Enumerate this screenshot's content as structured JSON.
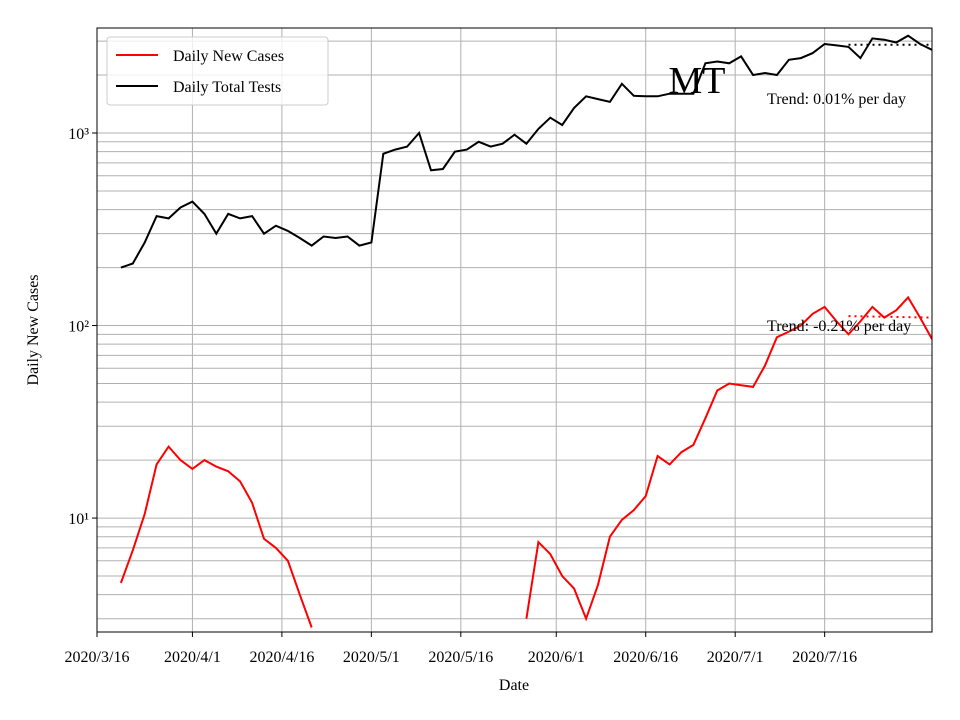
{
  "chart_data": {
    "type": "line",
    "title": "MT",
    "x_label": "Date",
    "y_label": "Daily New Cases",
    "log_scale": true,
    "grid": true,
    "legend": "upper left",
    "xlim": [
      "2020-03-16",
      "2020-08-03"
    ],
    "xticks": [
      {
        "value": "2020-03-16",
        "label": "2020/3/16"
      },
      {
        "value": "2020-04-01",
        "label": "2020/4/1"
      },
      {
        "value": "2020-04-16",
        "label": "2020/4/16"
      },
      {
        "value": "2020-05-01",
        "label": "2020/5/1"
      },
      {
        "value": "2020-05-16",
        "label": "2020/5/16"
      },
      {
        "value": "2020-06-01",
        "label": "2020/6/1"
      },
      {
        "value": "2020-06-16",
        "label": "2020/6/16"
      },
      {
        "value": "2020-07-01",
        "label": "2020/7/1"
      },
      {
        "value": "2020-07-16",
        "label": "2020/7/16"
      }
    ],
    "ylim": [
      2.56,
      3510
    ],
    "yticks": [
      {
        "value": 10,
        "label": "10¹"
      },
      {
        "value": 100,
        "label": "10²"
      },
      {
        "value": 1000,
        "label": "10³"
      }
    ],
    "yminorticks": [
      3,
      4,
      5,
      6,
      7,
      8,
      9,
      20,
      30,
      40,
      50,
      60,
      70,
      80,
      90,
      200,
      300,
      400,
      500,
      600,
      700,
      800,
      900,
      2000,
      3000
    ],
    "x": [
      "2020-03-20",
      "2020-03-22",
      "2020-03-24",
      "2020-03-26",
      "2020-03-28",
      "2020-03-30",
      "2020-04-01",
      "2020-04-03",
      "2020-04-05",
      "2020-04-07",
      "2020-04-09",
      "2020-04-11",
      "2020-04-13",
      "2020-04-15",
      "2020-04-17",
      "2020-04-19",
      "2020-04-21",
      "2020-04-23",
      "2020-04-25",
      "2020-04-27",
      "2020-04-29",
      "2020-05-01",
      "2020-05-03",
      "2020-05-05",
      "2020-05-07",
      "2020-05-09",
      "2020-05-11",
      "2020-05-13",
      "2020-05-15",
      "2020-05-17",
      "2020-05-19",
      "2020-05-21",
      "2020-05-23",
      "2020-05-25",
      "2020-05-27",
      "2020-05-29",
      "2020-05-31",
      "2020-06-02",
      "2020-06-04",
      "2020-06-06",
      "2020-06-08",
      "2020-06-10",
      "2020-06-12",
      "2020-06-14",
      "2020-06-16",
      "2020-06-18",
      "2020-06-20",
      "2020-06-22",
      "2020-06-24",
      "2020-06-26",
      "2020-06-28",
      "2020-06-30",
      "2020-07-02",
      "2020-07-04",
      "2020-07-06",
      "2020-07-08",
      "2020-07-10",
      "2020-07-12",
      "2020-07-14",
      "2020-07-16",
      "2020-07-18",
      "2020-07-20",
      "2020-07-22",
      "2020-07-24",
      "2020-07-26",
      "2020-07-28",
      "2020-07-30",
      "2020-08-01",
      "2020-08-03"
    ],
    "series": [
      {
        "name": "Daily New Cases",
        "color": "#ff0000",
        "values": [
          4.6,
          6.8,
          10.5,
          19,
          23.5,
          20,
          18,
          20,
          18.5,
          17.5,
          15.5,
          12,
          7.8,
          7,
          6,
          4,
          2.7,
          null,
          null,
          null,
          null,
          null,
          null,
          null,
          null,
          null,
          null,
          null,
          null,
          null,
          null,
          null,
          null,
          null,
          3,
          7.5,
          6.5,
          5,
          4.3,
          3,
          4.5,
          8,
          9.8,
          11,
          13,
          21,
          19,
          22,
          24,
          33,
          46,
          50,
          49,
          48,
          62,
          87,
          93,
          100,
          115,
          125,
          105,
          90,
          105,
          125,
          110,
          120,
          140,
          110,
          85
        ]
      },
      {
        "name": "Daily Total Tests",
        "color": "#000000",
        "values": [
          200,
          210,
          270,
          370,
          360,
          410,
          440,
          380,
          300,
          380,
          360,
          370,
          300,
          330,
          310,
          285,
          260,
          290,
          285,
          290,
          260,
          270,
          780,
          820,
          850,
          1000,
          640,
          650,
          800,
          820,
          900,
          850,
          880,
          980,
          880,
          1050,
          1200,
          1100,
          1350,
          1550,
          1500,
          1450,
          1800,
          1560,
          1550,
          1550,
          1600,
          1600,
          1600,
          2300,
          2350,
          2300,
          2500,
          2000,
          2050,
          2000,
          2400,
          2450,
          2600,
          2900,
          2850,
          2800,
          2450,
          3100,
          3050,
          2950,
          3200,
          2900,
          2700
        ]
      }
    ],
    "trends": [
      {
        "color": "#000000",
        "x": [
          "2020-07-20",
          "2020-08-03"
        ],
        "values": [
          2870,
          2870
        ]
      },
      {
        "color": "#ff0000",
        "x": [
          "2020-07-20",
          "2020-08-03"
        ],
        "values": [
          112,
          110
        ]
      }
    ],
    "annotations": [
      "Trend: 0.01% per day",
      "Trend: -0.21% per day"
    ]
  }
}
